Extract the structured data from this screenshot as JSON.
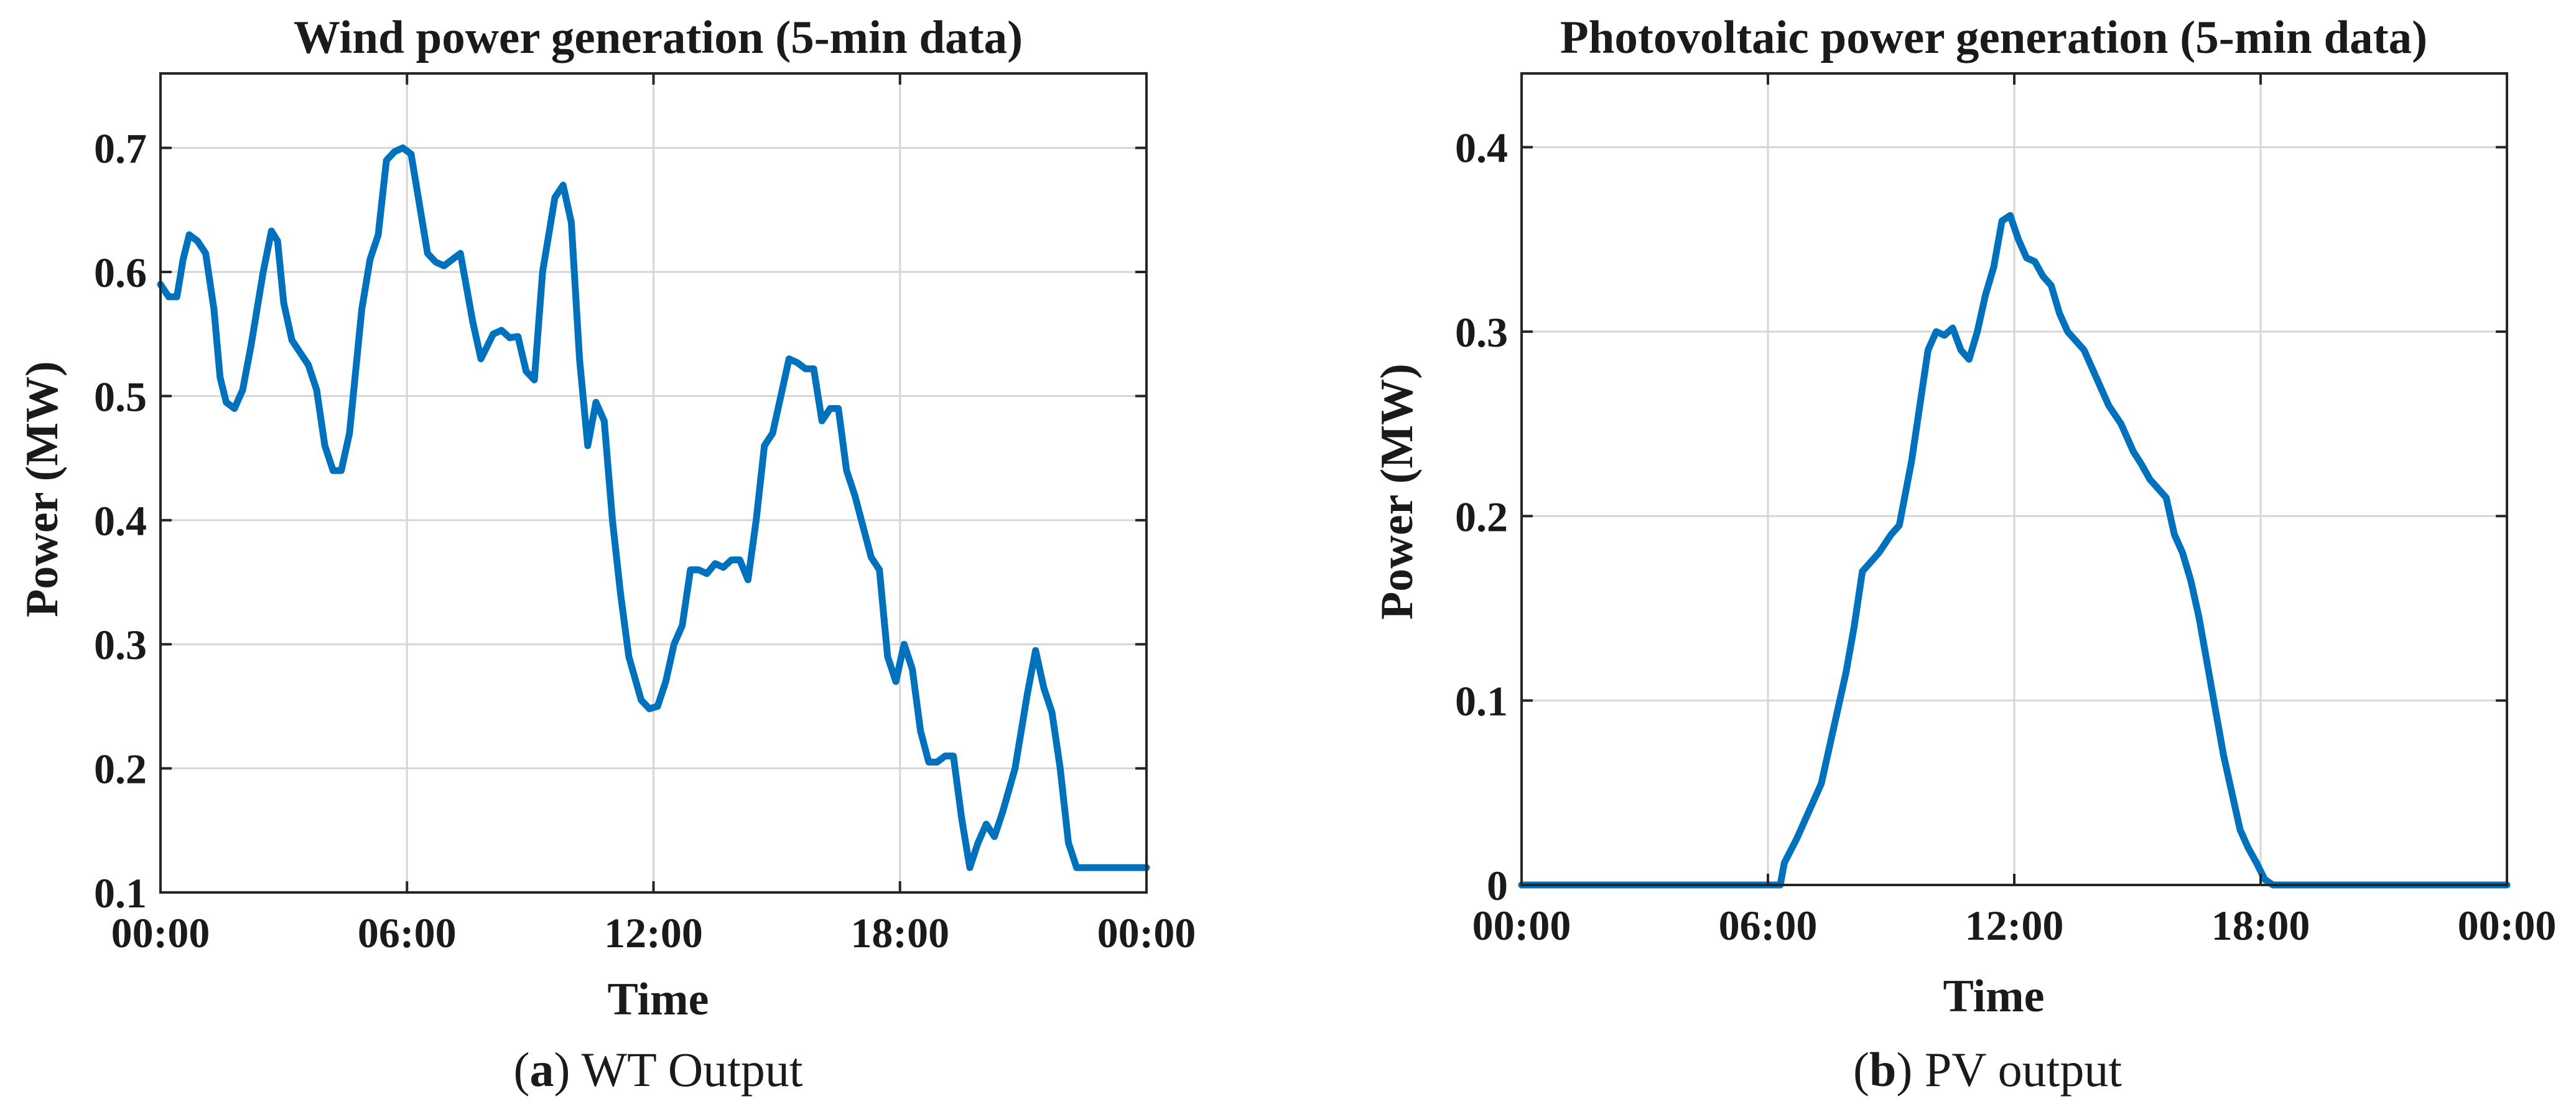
{
  "colors": {
    "series": "#0072BD"
  },
  "chart_data": [
    {
      "type": "line",
      "title": "Wind power generation (5-min data)",
      "xlabel": "Time",
      "ylabel": "Power (MW)",
      "caption_letter": "a",
      "caption_text": "WT Output",
      "xlim": [
        0,
        24
      ],
      "ylim": [
        0.1,
        0.76
      ],
      "xticks": [
        0,
        6,
        12,
        18,
        24
      ],
      "xtick_labels": [
        "00:00",
        "06:00",
        "12:00",
        "18:00",
        "00:00"
      ],
      "yticks": [
        0.1,
        0.2,
        0.3,
        0.4,
        0.5,
        0.6,
        0.7
      ],
      "ytick_labels": [
        "0.1",
        "0.2",
        "0.3",
        "0.4",
        "0.5",
        "0.6",
        "0.7"
      ],
      "grid": true,
      "series": [
        {
          "x": [
            0,
            0.2,
            0.4,
            0.55,
            0.7,
            0.9,
            1.1,
            1.3,
            1.45,
            1.6,
            1.8,
            2.0,
            2.2,
            2.5,
            2.7,
            2.85,
            3.0,
            3.2,
            3.4,
            3.6,
            3.8,
            4.0,
            4.2,
            4.4,
            4.6,
            4.9,
            5.1,
            5.3,
            5.5,
            5.7,
            5.9,
            6.1,
            6.3,
            6.5,
            6.7,
            6.9,
            7.1,
            7.3,
            7.6,
            7.8,
            8.1,
            8.3,
            8.5,
            8.7,
            8.9,
            9.1,
            9.3,
            9.6,
            9.8,
            10.0,
            10.2,
            10.4,
            10.6,
            10.8,
            11.0,
            11.2,
            11.4,
            11.7,
            11.9,
            12.1,
            12.3,
            12.5,
            12.7,
            12.9,
            13.1,
            13.3,
            13.5,
            13.7,
            13.9,
            14.1,
            14.3,
            14.5,
            14.7,
            14.9,
            15.1,
            15.3,
            15.5,
            15.7,
            15.9,
            16.1,
            16.3,
            16.5,
            16.7,
            16.9,
            17.1,
            17.3,
            17.5,
            17.7,
            17.9,
            18.1,
            18.3,
            18.5,
            18.7,
            18.9,
            19.1,
            19.3,
            19.5,
            19.7,
            19.9,
            20.1,
            20.3,
            20.5,
            20.8,
            21.1,
            21.3,
            21.5,
            21.7,
            21.9,
            22.1,
            22.3,
            22.5,
            22.7,
            22.9,
            23.1,
            23.3,
            23.5,
            23.7,
            23.9,
            24.0
          ],
          "y": [
            0.59,
            0.58,
            0.58,
            0.61,
            0.63,
            0.625,
            0.615,
            0.57,
            0.515,
            0.495,
            0.49,
            0.505,
            0.54,
            0.6,
            0.633,
            0.625,
            0.575,
            0.545,
            0.535,
            0.525,
            0.505,
            0.46,
            0.44,
            0.44,
            0.47,
            0.57,
            0.61,
            0.63,
            0.69,
            0.697,
            0.7,
            0.695,
            0.655,
            0.615,
            0.608,
            0.605,
            0.61,
            0.615,
            0.56,
            0.53,
            0.55,
            0.553,
            0.547,
            0.548,
            0.52,
            0.513,
            0.6,
            0.66,
            0.67,
            0.64,
            0.53,
            0.46,
            0.495,
            0.48,
            0.4,
            0.34,
            0.29,
            0.255,
            0.248,
            0.25,
            0.27,
            0.3,
            0.315,
            0.36,
            0.36,
            0.357,
            0.365,
            0.362,
            0.368,
            0.368,
            0.352,
            0.4,
            0.46,
            0.47,
            0.5,
            0.53,
            0.527,
            0.522,
            0.522,
            0.48,
            0.49,
            0.49,
            0.44,
            0.42,
            0.395,
            0.37,
            0.36,
            0.29,
            0.27,
            0.3,
            0.28,
            0.23,
            0.205,
            0.205,
            0.21,
            0.21,
            0.16,
            0.12,
            0.14,
            0.155,
            0.145,
            0.165,
            0.2,
            0.26,
            0.295,
            0.265,
            0.245,
            0.2,
            0.14,
            0.12,
            0.12,
            0.12,
            0.12,
            0.12,
            0.12,
            0.12,
            0.12,
            0.12,
            0.12
          ]
        }
      ]
    },
    {
      "type": "line",
      "title": "Photovoltaic power generation (5-min data)",
      "xlabel": "Time",
      "ylabel": "Power (MW)",
      "caption_letter": "b",
      "caption_text": "PV output",
      "xlim": [
        0,
        24
      ],
      "ylim": [
        0,
        0.44
      ],
      "xticks": [
        0,
        6,
        12,
        18,
        24
      ],
      "xtick_labels": [
        "00:00",
        "06:00",
        "12:00",
        "18:00",
        "00:00"
      ],
      "yticks": [
        0,
        0.1,
        0.2,
        0.3,
        0.4
      ],
      "ytick_labels": [
        "0",
        "0.1",
        "0.2",
        "0.3",
        "0.4"
      ],
      "grid": true,
      "series": [
        {
          "x": [
            0,
            6.3,
            6.4,
            6.7,
            7.0,
            7.3,
            7.6,
            7.9,
            8.1,
            8.3,
            8.7,
            9.0,
            9.2,
            9.5,
            9.7,
            9.9,
            10.1,
            10.3,
            10.5,
            10.7,
            10.9,
            11.1,
            11.3,
            11.5,
            11.7,
            11.9,
            12.1,
            12.2,
            12.3,
            12.5,
            12.7,
            12.9,
            13.1,
            13.3,
            13.5,
            13.7,
            14.0,
            14.3,
            14.6,
            14.9,
            15.1,
            15.3,
            15.5,
            15.7,
            15.9,
            16.1,
            16.3,
            16.5,
            16.7,
            16.9,
            17.1,
            17.3,
            17.5,
            17.7,
            17.9,
            18.1,
            18.3,
            18.5,
            18.8,
            19.0,
            19.2,
            19.3,
            24.0
          ],
          "y": [
            0,
            0,
            0.012,
            0.025,
            0.04,
            0.055,
            0.085,
            0.115,
            0.14,
            0.17,
            0.18,
            0.19,
            0.195,
            0.23,
            0.26,
            0.29,
            0.3,
            0.298,
            0.302,
            0.29,
            0.285,
            0.3,
            0.32,
            0.335,
            0.36,
            0.363,
            0.35,
            0.345,
            0.34,
            0.338,
            0.33,
            0.325,
            0.31,
            0.3,
            0.295,
            0.29,
            0.275,
            0.26,
            0.25,
            0.235,
            0.228,
            0.22,
            0.215,
            0.21,
            0.19,
            0.18,
            0.165,
            0.145,
            0.12,
            0.095,
            0.07,
            0.05,
            0.03,
            0.02,
            0.012,
            0.003,
            0,
            0,
            0,
            0,
            0,
            0,
            0
          ]
        }
      ]
    }
  ]
}
